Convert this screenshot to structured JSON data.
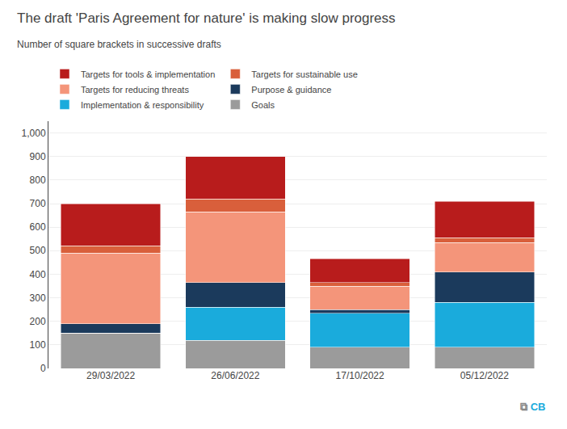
{
  "chart_data": {
    "type": "bar",
    "stacked": true,
    "title": "The draft 'Paris Agreement for nature' is making slow progress",
    "subtitle": "Number of square brackets in successive drafts",
    "categories": [
      "29/03/2022",
      "26/06/2022",
      "17/10/2022",
      "05/12/2022"
    ],
    "series": [
      {
        "name": "Goals",
        "color": "#9b9b9b",
        "values": [
          150,
          120,
          90,
          90
        ]
      },
      {
        "name": "Implementation & responsibility",
        "color": "#1aabdc",
        "values": [
          0,
          140,
          145,
          190
        ]
      },
      {
        "name": "Purpose & guidance",
        "color": "#1b3a5c",
        "values": [
          40,
          105,
          15,
          130
        ]
      },
      {
        "name": "Targets for reducing threats",
        "color": "#f4957a",
        "values": [
          300,
          300,
          100,
          125
        ]
      },
      {
        "name": "Targets for sustainable use",
        "color": "#d95f3b",
        "values": [
          30,
          55,
          15,
          20
        ]
      },
      {
        "name": "Targets for tools & implementation",
        "color": "#b81c1c",
        "values": [
          180,
          180,
          100,
          155
        ]
      }
    ],
    "ylim": [
      0,
      1050
    ],
    "yticks": [
      0,
      100,
      200,
      300,
      400,
      500,
      600,
      700,
      800,
      900,
      {
        "value": 1000,
        "label": "1,000"
      }
    ],
    "grid": true,
    "legend": "upper left",
    "annotations": [
      {
        "text": "⧉"
      },
      {
        "text": "CB",
        "color": "#1aabdc"
      }
    ]
  }
}
